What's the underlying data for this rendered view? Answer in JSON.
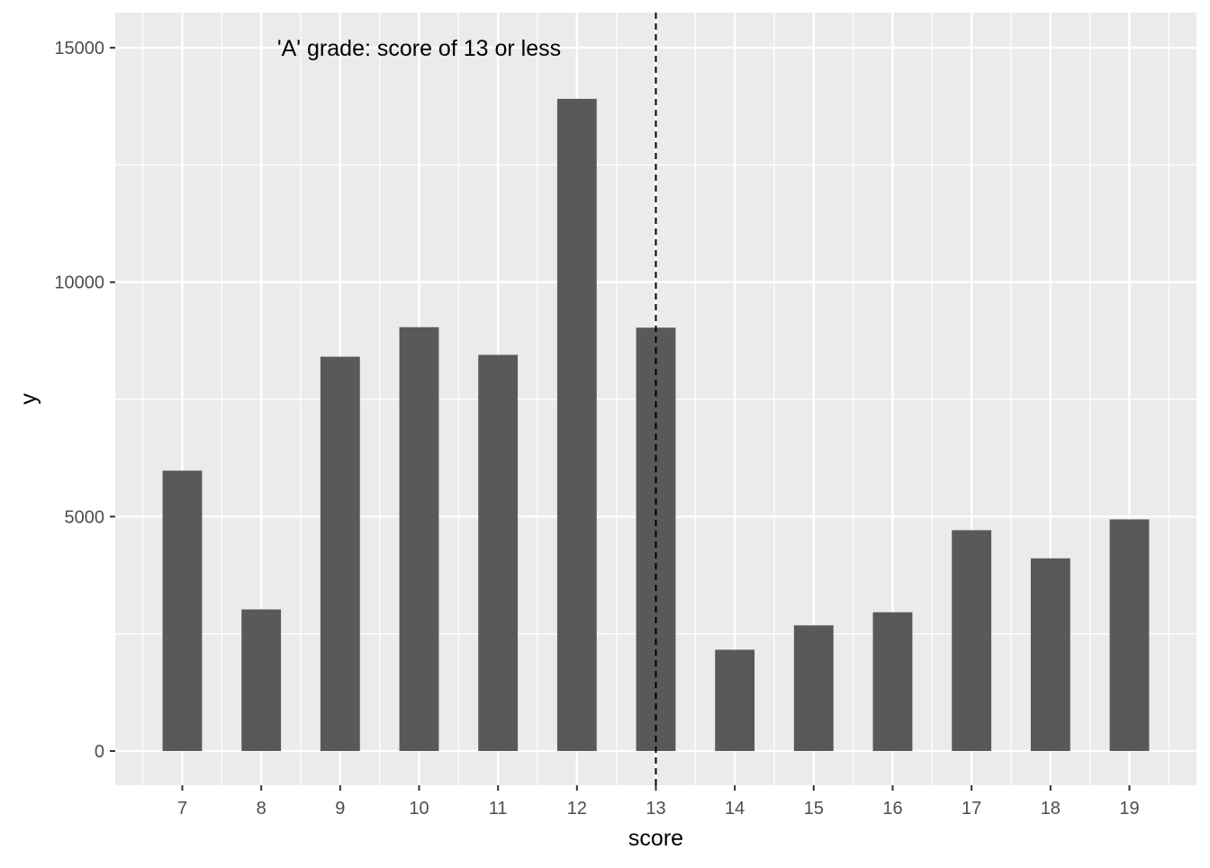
{
  "chart_data": {
    "type": "bar",
    "xlabel": "score",
    "ylabel": "y",
    "categories": [
      "7",
      "8",
      "9",
      "10",
      "11",
      "12",
      "13",
      "14",
      "15",
      "16",
      "17",
      "18",
      "19"
    ],
    "x": [
      7,
      8,
      9,
      10,
      11,
      12,
      13,
      14,
      15,
      16,
      17,
      18,
      19
    ],
    "values": [
      5980,
      3020,
      8410,
      9040,
      8450,
      13910,
      9030,
      2160,
      2680,
      2960,
      4710,
      4110,
      4940
    ],
    "ylim": [
      -730,
      15750
    ],
    "xlim": [
      6.15,
      19.85
    ],
    "yticks": [
      0,
      5000,
      10000,
      15000
    ],
    "ytick_labels": [
      "0",
      "5000",
      "10000",
      "15000"
    ],
    "reference_line": {
      "x": 13,
      "style": "dashed",
      "color": "#000000"
    },
    "annotation": {
      "text": "'A' grade: score of 13 or less",
      "x": 10,
      "y": 15000
    },
    "bar_color": "#595959",
    "panel_background": "#ebebeb",
    "grid": true,
    "grid_color": "#ffffff",
    "legend": "none"
  }
}
